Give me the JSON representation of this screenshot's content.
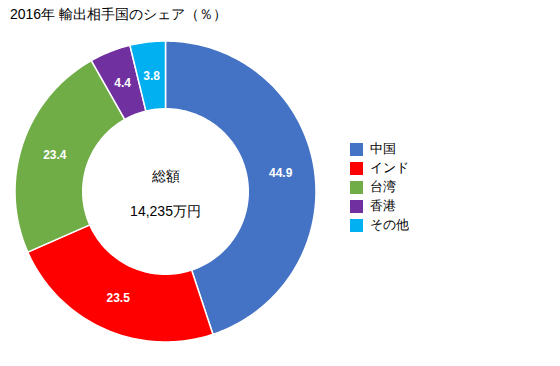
{
  "chart_data": {
    "type": "donut",
    "title": "2016年 輸出相手国のシェア（％）",
    "categories": [
      "中国",
      "インド",
      "台湾",
      "香港",
      "その他"
    ],
    "values": [
      44.9,
      23.5,
      23.4,
      4.4,
      3.8
    ],
    "colors": [
      "#4472C4",
      "#FF0000",
      "#70AD47",
      "#7030A0",
      "#00B0F0"
    ],
    "annotations": [
      "総額",
      "14,235万円"
    ],
    "data_labels": true,
    "legend": "right",
    "tick_labels": false
  }
}
